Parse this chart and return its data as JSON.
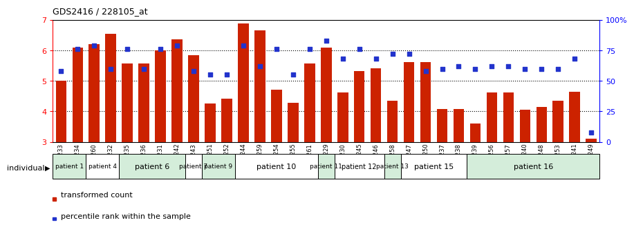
{
  "title": "GDS2416 / 228105_at",
  "samples": [
    "GSM135233",
    "GSM135234",
    "GSM135260",
    "GSM135232",
    "GSM135235",
    "GSM135236",
    "GSM135231",
    "GSM135242",
    "GSM135243",
    "GSM135251",
    "GSM135252",
    "GSM135244",
    "GSM135259",
    "GSM135254",
    "GSM135255",
    "GSM135261",
    "GSM135229",
    "GSM135230",
    "GSM135245",
    "GSM135246",
    "GSM135258",
    "GSM135247",
    "GSM135250",
    "GSM135237",
    "GSM135238",
    "GSM135239",
    "GSM135256",
    "GSM135257",
    "GSM135240",
    "GSM135248",
    "GSM135253",
    "GSM135241",
    "GSM135249"
  ],
  "bar_values": [
    5.0,
    6.1,
    6.2,
    6.55,
    5.58,
    5.58,
    6.0,
    6.35,
    5.85,
    4.27,
    4.42,
    6.88,
    6.65,
    4.72,
    4.28,
    5.58,
    6.1,
    4.62,
    5.32,
    5.42,
    4.35,
    5.62,
    5.62,
    4.08,
    4.08,
    3.6,
    4.62,
    4.62,
    4.05,
    4.15,
    4.35,
    4.65,
    3.1
  ],
  "dot_values": [
    58,
    76,
    79,
    60,
    76,
    60,
    76,
    79,
    58,
    55,
    55,
    79,
    62,
    76,
    55,
    76,
    83,
    68,
    76,
    68,
    72,
    72,
    58,
    60,
    62,
    60,
    62,
    62,
    60,
    60,
    60,
    68,
    8
  ],
  "patients": [
    {
      "label": "patient 1",
      "start": 0,
      "end": 2,
      "color": "#d4edda"
    },
    {
      "label": "patient 4",
      "start": 2,
      "end": 4,
      "color": "#ffffff"
    },
    {
      "label": "patient 6",
      "start": 4,
      "end": 8,
      "color": "#d4edda"
    },
    {
      "label": "patient 7",
      "start": 8,
      "end": 9,
      "color": "#ffffff"
    },
    {
      "label": "patient 9",
      "start": 9,
      "end": 11,
      "color": "#d4edda"
    },
    {
      "label": "patient 10",
      "start": 11,
      "end": 16,
      "color": "#ffffff"
    },
    {
      "label": "patient 11",
      "start": 16,
      "end": 17,
      "color": "#d4edda"
    },
    {
      "label": "patient 12",
      "start": 17,
      "end": 20,
      "color": "#ffffff"
    },
    {
      "label": "patient 13",
      "start": 20,
      "end": 21,
      "color": "#d4edda"
    },
    {
      "label": "patient 15",
      "start": 21,
      "end": 25,
      "color": "#ffffff"
    },
    {
      "label": "patient 16",
      "start": 25,
      "end": 33,
      "color": "#d4edda"
    }
  ],
  "ylim_left": [
    3,
    7
  ],
  "ylim_right": [
    0,
    100
  ],
  "yticks_left": [
    3,
    4,
    5,
    6,
    7
  ],
  "yticks_right": [
    0,
    25,
    50,
    75,
    100
  ],
  "bar_color": "#cc2200",
  "dot_color": "#2233cc",
  "title_fontsize": 9
}
